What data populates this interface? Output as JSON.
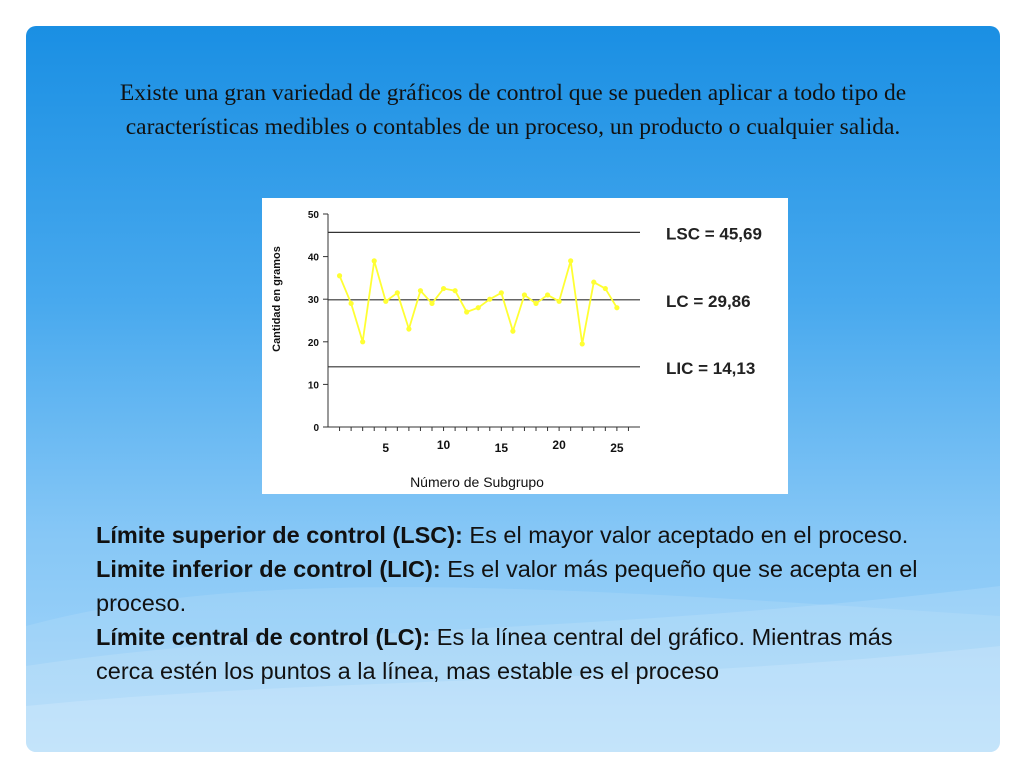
{
  "intro_text": "Existe una gran variedad de gráficos de control que se pueden aplicar a todo tipo de características medibles o contables de un proceso, un producto o cualquier salida.",
  "definitions": [
    {
      "term": "Límite superior de control (LSC):",
      "text": " Es el mayor valor aceptado en el proceso."
    },
    {
      "term": "Limite inferior de control (LIC):",
      "text": " Es el valor más pequeño que se acepta en el proceso."
    },
    {
      "term": "Límite central de control (LC):",
      "text": " Es la línea central del gráfico. Mientras más cerca estén los puntos a la línea, mas estable es el proceso"
    }
  ],
  "colors": {
    "series": "#ffff33",
    "limit_lines": "#333333",
    "slide_top": "#1a8fe3",
    "slide_bottom": "#a9d8fa"
  },
  "chart_data": {
    "type": "line",
    "xlabel": "Número de Subgrupo",
    "ylabel": "Cantidad en gramos",
    "ylim": [
      0,
      50
    ],
    "xlim": [
      0,
      27
    ],
    "yticks": [
      0,
      10,
      20,
      30,
      40,
      50
    ],
    "xticks": [
      5,
      10,
      15,
      20,
      25
    ],
    "grid": false,
    "x": [
      1,
      2,
      3,
      4,
      5,
      6,
      7,
      8,
      9,
      10,
      11,
      12,
      13,
      14,
      15,
      16,
      17,
      18,
      19,
      20,
      21,
      22,
      23,
      24,
      25
    ],
    "values": [
      35.5,
      29,
      20,
      39,
      29.5,
      31.5,
      23,
      32,
      29,
      32.5,
      32,
      27,
      28,
      30,
      31.5,
      22.5,
      31,
      29,
      31,
      29.5,
      39,
      19.5,
      34,
      32.5,
      28
    ],
    "limits": [
      {
        "label": "LSC = 45,69",
        "value": 45.69
      },
      {
        "label": "LC = 29,86",
        "value": 29.86
      },
      {
        "label": "LIC = 14,13",
        "value": 14.13
      }
    ]
  }
}
